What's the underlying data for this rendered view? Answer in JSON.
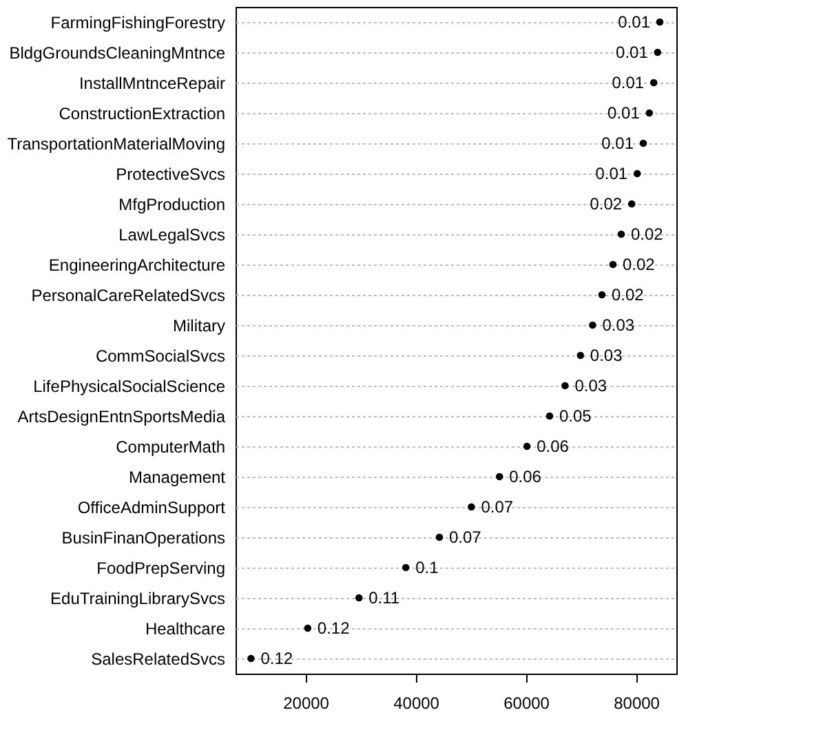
{
  "chart_data": {
    "type": "scatter",
    "categories": [
      "FarmingFishingForestry",
      "BldgGroundsCleaningMntnce",
      "InstallMntnceRepair",
      "ConstructionExtraction",
      "TransportationMaterialMoving",
      "ProtectiveSvcs",
      "MfgProduction",
      "LawLegalSvcs",
      "EngineeringArchitecture",
      "PersonalCareRelatedSvcs",
      "Military",
      "CommSocialSvcs",
      "LifePhysicalSocialScience",
      "ArtsDesignEntnSportsMedia",
      "ComputerMath",
      "Management",
      "OfficeAdminSupport",
      "BusinFinanOperations",
      "FoodPrepServing",
      "EduTrainingLibrarySvcs",
      "Healthcare",
      "SalesRelatedSvcs"
    ],
    "orientation": "horizontal",
    "values": [
      84300,
      83900,
      83200,
      82400,
      81300,
      80200,
      79200,
      77300,
      75800,
      73800,
      72100,
      69900,
      67100,
      64300,
      60200,
      55200,
      50100,
      44300,
      38200,
      29700,
      20400,
      10100
    ],
    "annotations": [
      {
        "text": "0.01",
        "x": 84300,
        "y": "FarmingFishingForestry"
      },
      {
        "text": "0.01",
        "x": 83900,
        "y": "BldgGroundsCleaningMntnce"
      },
      {
        "text": "0.01",
        "x": 83200,
        "y": "InstallMntnceRepair"
      },
      {
        "text": "0.01",
        "x": 82400,
        "y": "ConstructionExtraction"
      },
      {
        "text": "0.01",
        "x": 81300,
        "y": "TransportationMaterialMoving"
      },
      {
        "text": "0.01",
        "x": 80200,
        "y": "ProtectiveSvcs"
      },
      {
        "text": "0.02",
        "x": 79200,
        "y": "MfgProduction"
      },
      {
        "text": "0.02",
        "x": 77300,
        "y": "LawLegalSvcs"
      },
      {
        "text": "0.02",
        "x": 75800,
        "y": "EngineeringArchitecture"
      },
      {
        "text": "0.02",
        "x": 73800,
        "y": "PersonalCareRelatedSvcs"
      },
      {
        "text": "0.03",
        "x": 72100,
        "y": "Military"
      },
      {
        "text": "0.03",
        "x": 69900,
        "y": "CommSocialSvcs"
      },
      {
        "text": "0.03",
        "x": 67100,
        "y": "LifePhysicalSocialScience"
      },
      {
        "text": "0.05",
        "x": 64300,
        "y": "ArtsDesignEntnSportsMedia"
      },
      {
        "text": "0.06",
        "x": 60200,
        "y": "ComputerMath"
      },
      {
        "text": "0.06",
        "x": 55200,
        "y": "Management"
      },
      {
        "text": "0.07",
        "x": 50100,
        "y": "OfficeAdminSupport"
      },
      {
        "text": "0.07",
        "x": 44300,
        "y": "BusinFinanOperations"
      },
      {
        "text": "0.1",
        "x": 38200,
        "y": "FoodPrepServing"
      },
      {
        "text": "0.11",
        "x": 29700,
        "y": "EduTrainingLibrarySvcs"
      },
      {
        "text": "0.12",
        "x": 20400,
        "y": "Healthcare"
      },
      {
        "text": "0.12",
        "x": 10100,
        "y": "SalesRelatedSvcs"
      }
    ],
    "color": "#000000",
    "marker": "circle",
    "grid": "y",
    "xlim": [
      7300,
      87300
    ],
    "xticks": [
      20000,
      40000,
      60000,
      80000
    ]
  }
}
